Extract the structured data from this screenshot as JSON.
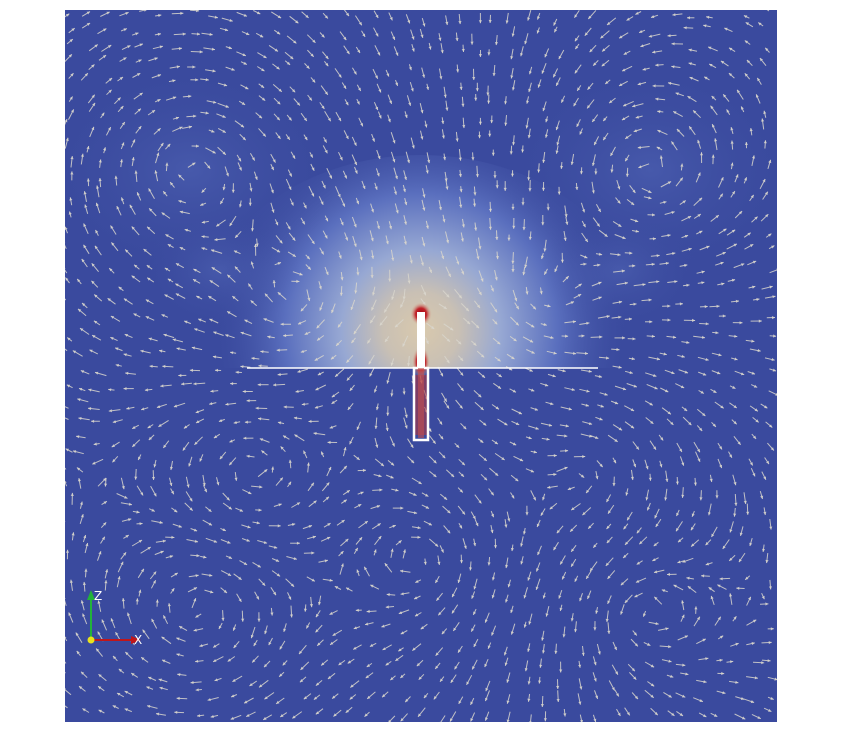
{
  "viewport": {
    "background_color": "#ffffff",
    "field_base_color": "#3a4a9e",
    "field_glow_inner_color": "#d7c8ad",
    "field_glow_mid_color": "#8aa0d6",
    "hotspot_color": "#b40418",
    "boundary_color": "#ffffff",
    "vector_color": "#d9d6cd"
  },
  "orientation_axes": {
    "z_label": "Z",
    "y_label": "Y",
    "x_label": "X",
    "z_color": "#22b33a",
    "y_color": "#e8e21e",
    "x_color": "#c0161a"
  }
}
